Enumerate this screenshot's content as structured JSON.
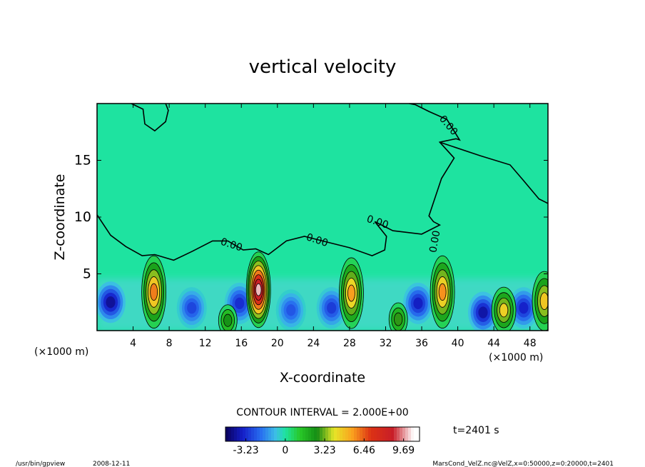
{
  "chart_data": {
    "type": "heatmap",
    "title": "vertical velocity",
    "xlabel": "X-coordinate",
    "ylabel": "Z-coordinate",
    "x_unit_label": "(×1000 m)",
    "y_unit_label": "(×1000 m)",
    "xlim": [
      0,
      50
    ],
    "ylim": [
      0,
      20
    ],
    "xticks": [
      4,
      8,
      12,
      16,
      20,
      24,
      28,
      32,
      36,
      40,
      44,
      48
    ],
    "yticks": [
      5,
      10,
      15
    ],
    "contour_interval_text": "CONTOUR INTERVAL = 2.000E+00",
    "contour_label": "0.00",
    "colorbar_ticks": [
      "-3.23",
      "0",
      "3.23",
      "6.46",
      "9.69"
    ],
    "colorbar_range": [
      -4.9,
      11.0
    ],
    "time_label": "t=2401 s",
    "zero_contour_labels": [
      {
        "x": 14.8,
        "z": 7.3
      },
      {
        "x": 24.3,
        "z": 7.7
      },
      {
        "x": 31.0,
        "z": 9.3
      },
      {
        "x": 37.8,
        "z": 7.8
      },
      {
        "x": 38.7,
        "z": 17.9
      }
    ],
    "updrafts": [
      {
        "x": 6.3,
        "z": 3.4,
        "w": 6.5
      },
      {
        "x": 17.9,
        "z": 3.6,
        "w": 10.5
      },
      {
        "x": 28.2,
        "z": 3.3,
        "w": 6.0
      },
      {
        "x": 38.3,
        "z": 3.4,
        "w": 6.2
      },
      {
        "x": 45.1,
        "z": 1.8,
        "w": 5.0
      },
      {
        "x": 49.6,
        "z": 2.6,
        "w": 5.2
      },
      {
        "x": 14.5,
        "z": 0.9,
        "w": 2.8
      },
      {
        "x": 33.4,
        "z": 1.0,
        "w": 3.2
      }
    ],
    "downdrafts": [
      {
        "x": 1.5,
        "z": 2.5,
        "w": -4.2
      },
      {
        "x": 10.5,
        "z": 2.0,
        "w": -2.8
      },
      {
        "x": 15.8,
        "z": 2.4,
        "w": -3.3
      },
      {
        "x": 21.5,
        "z": 1.8,
        "w": -2.5
      },
      {
        "x": 26.0,
        "z": 2.0,
        "w": -3.0
      },
      {
        "x": 35.6,
        "z": 2.4,
        "w": -3.6
      },
      {
        "x": 42.8,
        "z": 1.6,
        "w": -4.0
      },
      {
        "x": 47.3,
        "z": 2.0,
        "w": -3.5
      }
    ]
  },
  "footer": {
    "program": "/usr/bin/gpview",
    "date": "2008-12-11",
    "source": "MarsCond_VelZ.nc@VelZ,x=0:50000,z=0:20000,t=2401"
  },
  "colors": {
    "background_field": "#1ee3a0",
    "contour_line": "#000000"
  }
}
